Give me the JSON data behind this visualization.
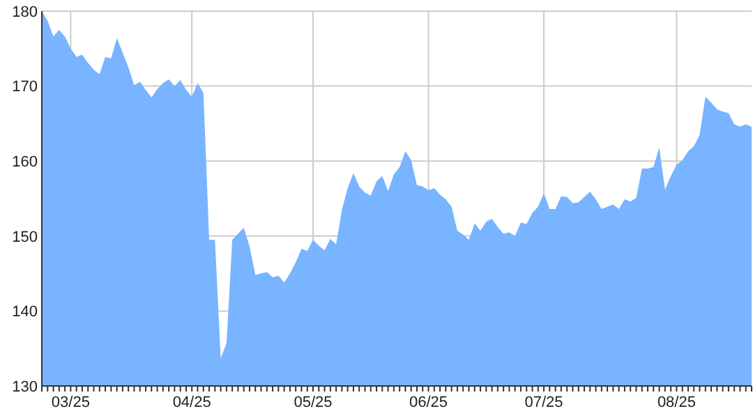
{
  "chart_data": {
    "type": "area",
    "categories": [
      null,
      null,
      null,
      null,
      null,
      "03/25",
      null,
      null,
      null,
      null,
      null,
      null,
      null,
      null,
      null,
      null,
      null,
      null,
      null,
      null,
      null,
      null,
      null,
      null,
      null,
      null,
      "04/25",
      null,
      null,
      null,
      null,
      null,
      null,
      null,
      null,
      null,
      null,
      null,
      null,
      null,
      null,
      null,
      null,
      null,
      null,
      null,
      null,
      "05/25",
      null,
      null,
      null,
      null,
      null,
      null,
      null,
      null,
      null,
      null,
      null,
      null,
      null,
      null,
      null,
      null,
      null,
      null,
      null,
      "06/25",
      null,
      null,
      null,
      null,
      null,
      null,
      null,
      null,
      null,
      null,
      null,
      null,
      null,
      null,
      null,
      null,
      null,
      null,
      null,
      "07/25",
      null,
      null,
      null,
      null,
      null,
      null,
      null,
      null,
      null,
      null,
      null,
      null,
      null,
      null,
      null,
      null,
      null,
      null,
      null,
      null,
      null,
      null,
      "08/25",
      null,
      null,
      null,
      null,
      null,
      null,
      null,
      null,
      null,
      null,
      null,
      null,
      null
    ],
    "series": [
      {
        "color": "#78b4ff",
        "values": [
          180.0,
          178.7,
          176.6,
          177.5,
          176.6,
          175.0,
          173.9,
          174.2,
          173.1,
          172.2,
          171.6,
          173.9,
          173.7,
          176.4,
          174.5,
          172.5,
          170.1,
          170.6,
          169.5,
          168.5,
          169.6,
          170.4,
          170.9,
          170.0,
          170.8,
          169.5,
          168.6,
          170.4,
          169.1,
          149.5,
          149.5,
          133.7,
          135.7,
          149.5,
          150.3,
          151.1,
          148.6,
          144.8,
          145.0,
          145.2,
          144.5,
          144.7,
          143.8,
          145.0,
          146.5,
          148.3,
          148.0,
          149.5,
          148.7,
          148.1,
          149.6,
          148.9,
          153.5,
          156.4,
          158.4,
          156.6,
          155.8,
          155.4,
          157.3,
          158.0,
          156.0,
          158.2,
          159.2,
          161.3,
          160.1,
          156.8,
          156.6,
          156.1,
          156.4,
          155.5,
          154.9,
          153.9,
          150.7,
          150.2,
          149.5,
          151.7,
          150.7,
          151.9,
          152.3,
          151.2,
          150.3,
          150.5,
          150.0,
          151.8,
          151.6,
          153.1,
          153.9,
          155.7,
          153.6,
          153.6,
          155.3,
          155.2,
          154.4,
          154.5,
          155.2,
          155.9,
          154.9,
          153.6,
          153.9,
          154.2,
          153.6,
          154.9,
          154.6,
          155.1,
          159.0,
          159.0,
          159.2,
          161.8,
          156.2,
          158.0,
          159.5,
          160.1,
          161.3,
          162.0,
          163.5,
          168.6,
          167.8,
          166.9,
          166.6,
          166.4,
          164.9,
          164.6,
          164.9,
          164.6
        ]
      }
    ],
    "ylim": [
      130,
      180
    ],
    "yticks": [
      130,
      140,
      150,
      160,
      170,
      180
    ],
    "grid": true
  }
}
